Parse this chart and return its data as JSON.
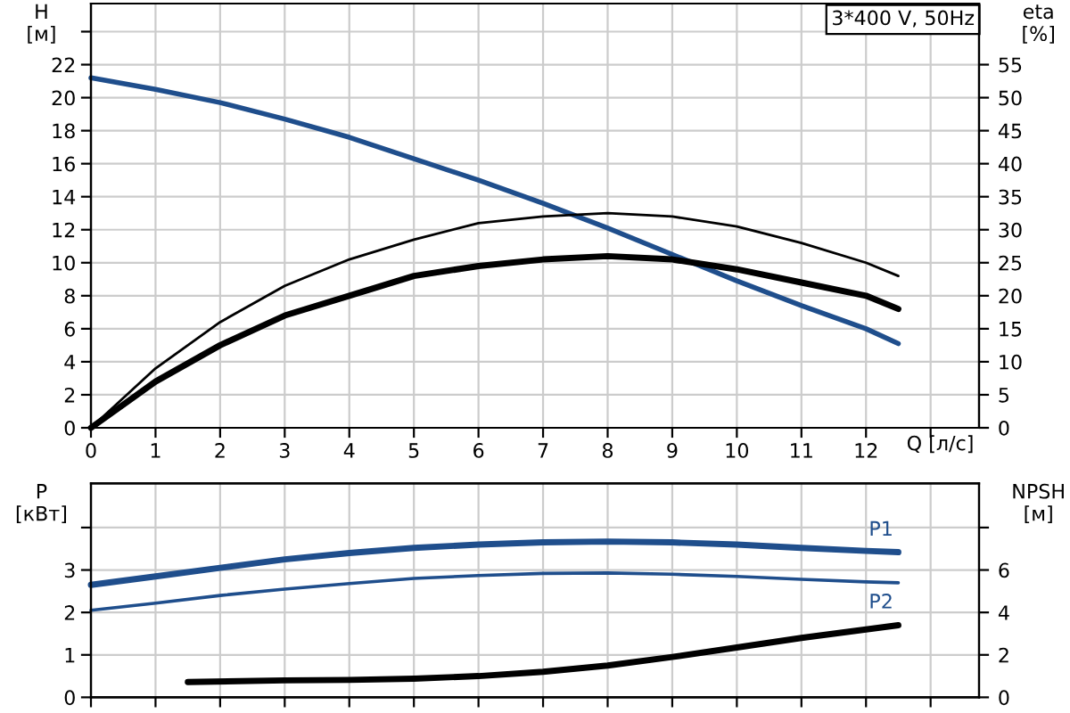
{
  "chart_data": [
    {
      "type": "line",
      "xlabel": "Q [л/с]",
      "ylabel": "H\n[м]",
      "y2label": "eta\n[%]",
      "annotations": [
        "3*400 V, 50Hz"
      ],
      "xlim": [
        0,
        13.75
      ],
      "xticks": [
        0,
        1,
        2,
        3,
        4,
        5,
        6,
        7,
        8,
        9,
        10,
        11,
        12,
        {
          "value": 13,
          "label": null
        }
      ],
      "ylim": [
        0,
        25.7
      ],
      "yticks": [
        0,
        2,
        4,
        6,
        8,
        10,
        12,
        14,
        16,
        18,
        20,
        22,
        {
          "value": 24,
          "label": null
        }
      ],
      "y2lim": [
        0,
        64.25
      ],
      "y2ticks": [
        0,
        5,
        10,
        15,
        20,
        25,
        30,
        35,
        40,
        45,
        50,
        55
      ],
      "grid": true,
      "series": [
        {
          "color": "#1f4e8c",
          "x": [
            0,
            1,
            2,
            3,
            4,
            5,
            6,
            7,
            8,
            9,
            10,
            11,
            12,
            12.5
          ],
          "values": [
            21.2,
            20.5,
            19.7,
            18.7,
            17.6,
            16.3,
            15.0,
            13.6,
            12.1,
            10.5,
            8.9,
            7.4,
            6.0,
            5.1
          ]
        },
        {
          "color": "#000000",
          "axis": "y2",
          "x": [
            0,
            1,
            2,
            3,
            4,
            5,
            6,
            7,
            8,
            9,
            10,
            11,
            12,
            12.5
          ],
          "values": [
            0,
            9,
            16,
            21.5,
            25.5,
            28.5,
            31,
            32,
            32.5,
            32,
            30.5,
            28,
            25,
            23
          ]
        },
        {
          "color": "#000000",
          "axis": "y2",
          "x": [
            0,
            1,
            2,
            3,
            4,
            5,
            6,
            7,
            8,
            9,
            10,
            11,
            12,
            12.5
          ],
          "values": [
            0,
            7,
            12.5,
            17,
            20,
            23,
            24.5,
            25.5,
            26,
            25.5,
            24,
            22,
            20,
            18
          ]
        }
      ]
    },
    {
      "type": "line",
      "ylabel": "P\n[кВт]",
      "y2label": "NPSH\n[м]",
      "tick_labels": "y",
      "xlim": [
        0,
        13.75
      ],
      "xticks": [
        0,
        1,
        2,
        3,
        4,
        5,
        6,
        7,
        8,
        9,
        10,
        11,
        12,
        13
      ],
      "ylim": [
        0,
        5.04
      ],
      "yticks": [
        0,
        1,
        2,
        3,
        {
          "value": 4,
          "label": null
        }
      ],
      "y2lim": [
        0,
        10.08
      ],
      "y2ticks": [
        0,
        2,
        4,
        6,
        {
          "value": 8,
          "label": null
        }
      ],
      "grid": true,
      "series": [
        {
          "name": "P1",
          "color": "#1f4e8c",
          "x": [
            0,
            1,
            2,
            3,
            4,
            5,
            6,
            7,
            8,
            9,
            10,
            11,
            12,
            12.5
          ],
          "values": [
            2.65,
            2.85,
            3.05,
            3.25,
            3.4,
            3.52,
            3.6,
            3.65,
            3.67,
            3.65,
            3.6,
            3.52,
            3.45,
            3.42
          ]
        },
        {
          "name": "P2",
          "color": "#1f4e8c",
          "x": [
            0,
            1,
            2,
            3,
            4,
            5,
            6,
            7,
            8,
            9,
            10,
            11,
            12,
            12.5
          ],
          "values": [
            2.05,
            2.22,
            2.4,
            2.55,
            2.68,
            2.8,
            2.87,
            2.92,
            2.93,
            2.9,
            2.85,
            2.78,
            2.72,
            2.7
          ]
        },
        {
          "color": "#000000",
          "axis": "y2",
          "x": [
            1.5,
            3,
            4,
            5,
            6,
            7,
            8,
            9,
            10,
            11,
            12,
            12.5
          ],
          "values": [
            0.72,
            0.8,
            0.82,
            0.88,
            1.0,
            1.2,
            1.5,
            1.9,
            2.35,
            2.8,
            3.2,
            3.4
          ]
        }
      ]
    }
  ]
}
